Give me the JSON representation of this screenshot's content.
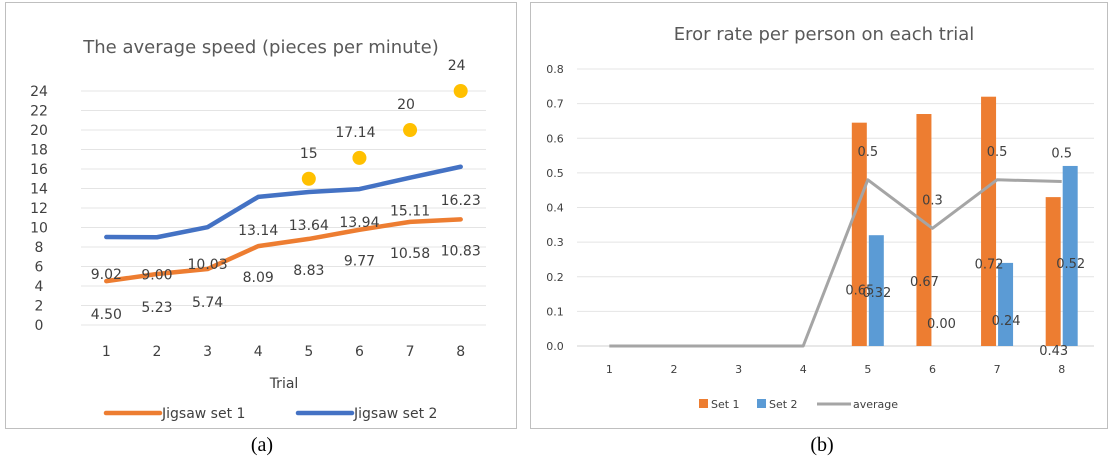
{
  "chart_data": [
    {
      "type": "line",
      "title": "The average speed (pieces per minute)",
      "xlabel": "Trial",
      "ylabel": "",
      "categories": [
        "1",
        "2",
        "3",
        "4",
        "5",
        "6",
        "7",
        "8"
      ],
      "ylim": [
        0,
        24
      ],
      "yticks": [
        "0",
        "2",
        "4",
        "6",
        "8",
        "10",
        "12",
        "14",
        "16",
        "18",
        "20",
        "22",
        "24"
      ],
      "series": [
        {
          "name": "Jigsaw set 1",
          "color": "#ed7d31",
          "values": [
            4.5,
            5.23,
            5.74,
            8.09,
            8.83,
            9.77,
            10.58,
            10.83
          ],
          "labels": [
            "4.50",
            "5.23",
            "5.74",
            "8.09",
            "8.83",
            "9.77",
            "10.58",
            "10.83"
          ]
        },
        {
          "name": "Jigsaw set 2",
          "color": "#4472c4",
          "values": [
            9.02,
            9.0,
            10.03,
            13.14,
            13.64,
            13.94,
            15.11,
            16.23
          ],
          "labels": [
            "9.02",
            "9.00",
            "10.03",
            "13.14",
            "13.64",
            "13.94",
            "15.11",
            "16.23"
          ]
        }
      ],
      "points": {
        "color": "#ffc000",
        "x": [
          "5",
          "6",
          "7",
          "8"
        ],
        "values": [
          15,
          17.14,
          20,
          24
        ],
        "labels": [
          "15",
          "17.14",
          "20",
          "24"
        ]
      },
      "grid": true,
      "legend": "bottom",
      "caption": "(a)"
    },
    {
      "type": "bar",
      "title": "Eror rate per person on each trial",
      "xlabel": "",
      "ylabel": "",
      "categories": [
        "1",
        "2",
        "3",
        "4",
        "5",
        "6",
        "7",
        "8"
      ],
      "ylim": [
        0,
        0.8
      ],
      "yticks": [
        "0.0",
        "0.1",
        "0.2",
        "0.3",
        "0.4",
        "0.5",
        "0.6",
        "0.7",
        "0.8"
      ],
      "series": [
        {
          "name": "Set 1",
          "color": "#ed7d31",
          "values": [
            0,
            0,
            0,
            0,
            0.645,
            0.67,
            0.72,
            0.43
          ],
          "labels": [
            "",
            "",
            "",
            "",
            "0.65",
            "0.67",
            "0.72",
            "0.43"
          ]
        },
        {
          "name": "Set 2",
          "color": "#5b9bd5",
          "values": [
            0,
            0,
            0,
            0,
            0.32,
            0,
            0.24,
            0.52
          ],
          "labels": [
            "",
            "",
            "",
            "",
            "0.32",
            "0.00",
            "0.24",
            "0.52"
          ]
        }
      ],
      "line": {
        "name": "average",
        "color": "#a5a5a5",
        "values": [
          0,
          0,
          0,
          0,
          0.48,
          0.34,
          0.48,
          0.475
        ],
        "labels": [
          "",
          "",
          "",
          "",
          "0.5",
          "0.3",
          "0.5",
          "0.5"
        ]
      },
      "grid": true,
      "legend": "bottom",
      "caption": "(b)"
    }
  ]
}
